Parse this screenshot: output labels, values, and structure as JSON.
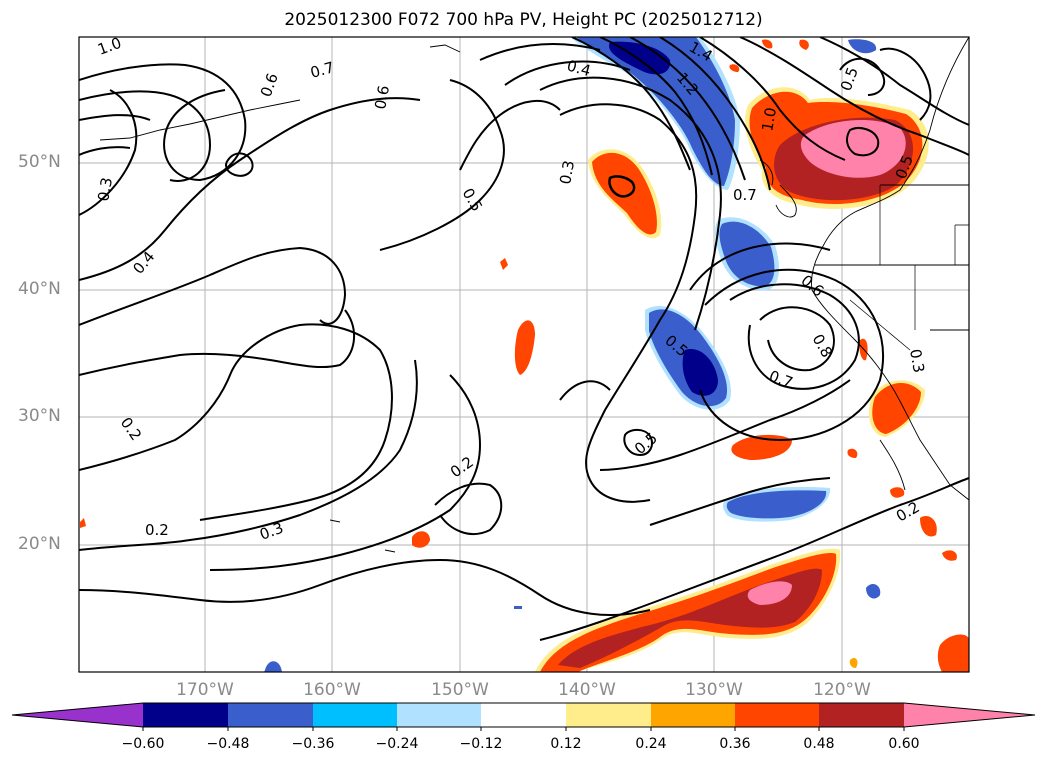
{
  "title": "2025012300 F072 700 hPa PV, Height PC (2025012712)",
  "axes": {
    "lat_ticks": [
      "50°N",
      "40°N",
      "30°N",
      "20°N"
    ],
    "lon_ticks": [
      "170°W",
      "160°W",
      "150°W",
      "140°W",
      "130°W",
      "120°W"
    ]
  },
  "colorbar": {
    "ticks": [
      "−0.60",
      "−0.48",
      "−0.36",
      "−0.24",
      "−0.12",
      "0.12",
      "0.24",
      "0.36",
      "0.48",
      "0.60"
    ],
    "colors": [
      "#9932cc",
      "#00008b",
      "#3a5fcd",
      "#00bfff",
      "#b0e2ff",
      "#ffffff",
      "#ffec8b",
      "#ffa500",
      "#ff4500",
      "#b22222",
      "#ff82ab"
    ]
  },
  "contour_labels": [
    "1.0",
    "0.7",
    "0.6",
    "0.6",
    "0.3",
    "0.4",
    "0.2",
    "0.2",
    "0.3",
    "0.2",
    "0.5",
    "0.3",
    "0.4",
    "1.4",
    "1.2",
    "1.0",
    "0.7",
    "0.6",
    "0.8",
    "0.7",
    "0.5",
    "0.5",
    "0.5",
    "0.3",
    "0.2",
    "0.5"
  ]
}
